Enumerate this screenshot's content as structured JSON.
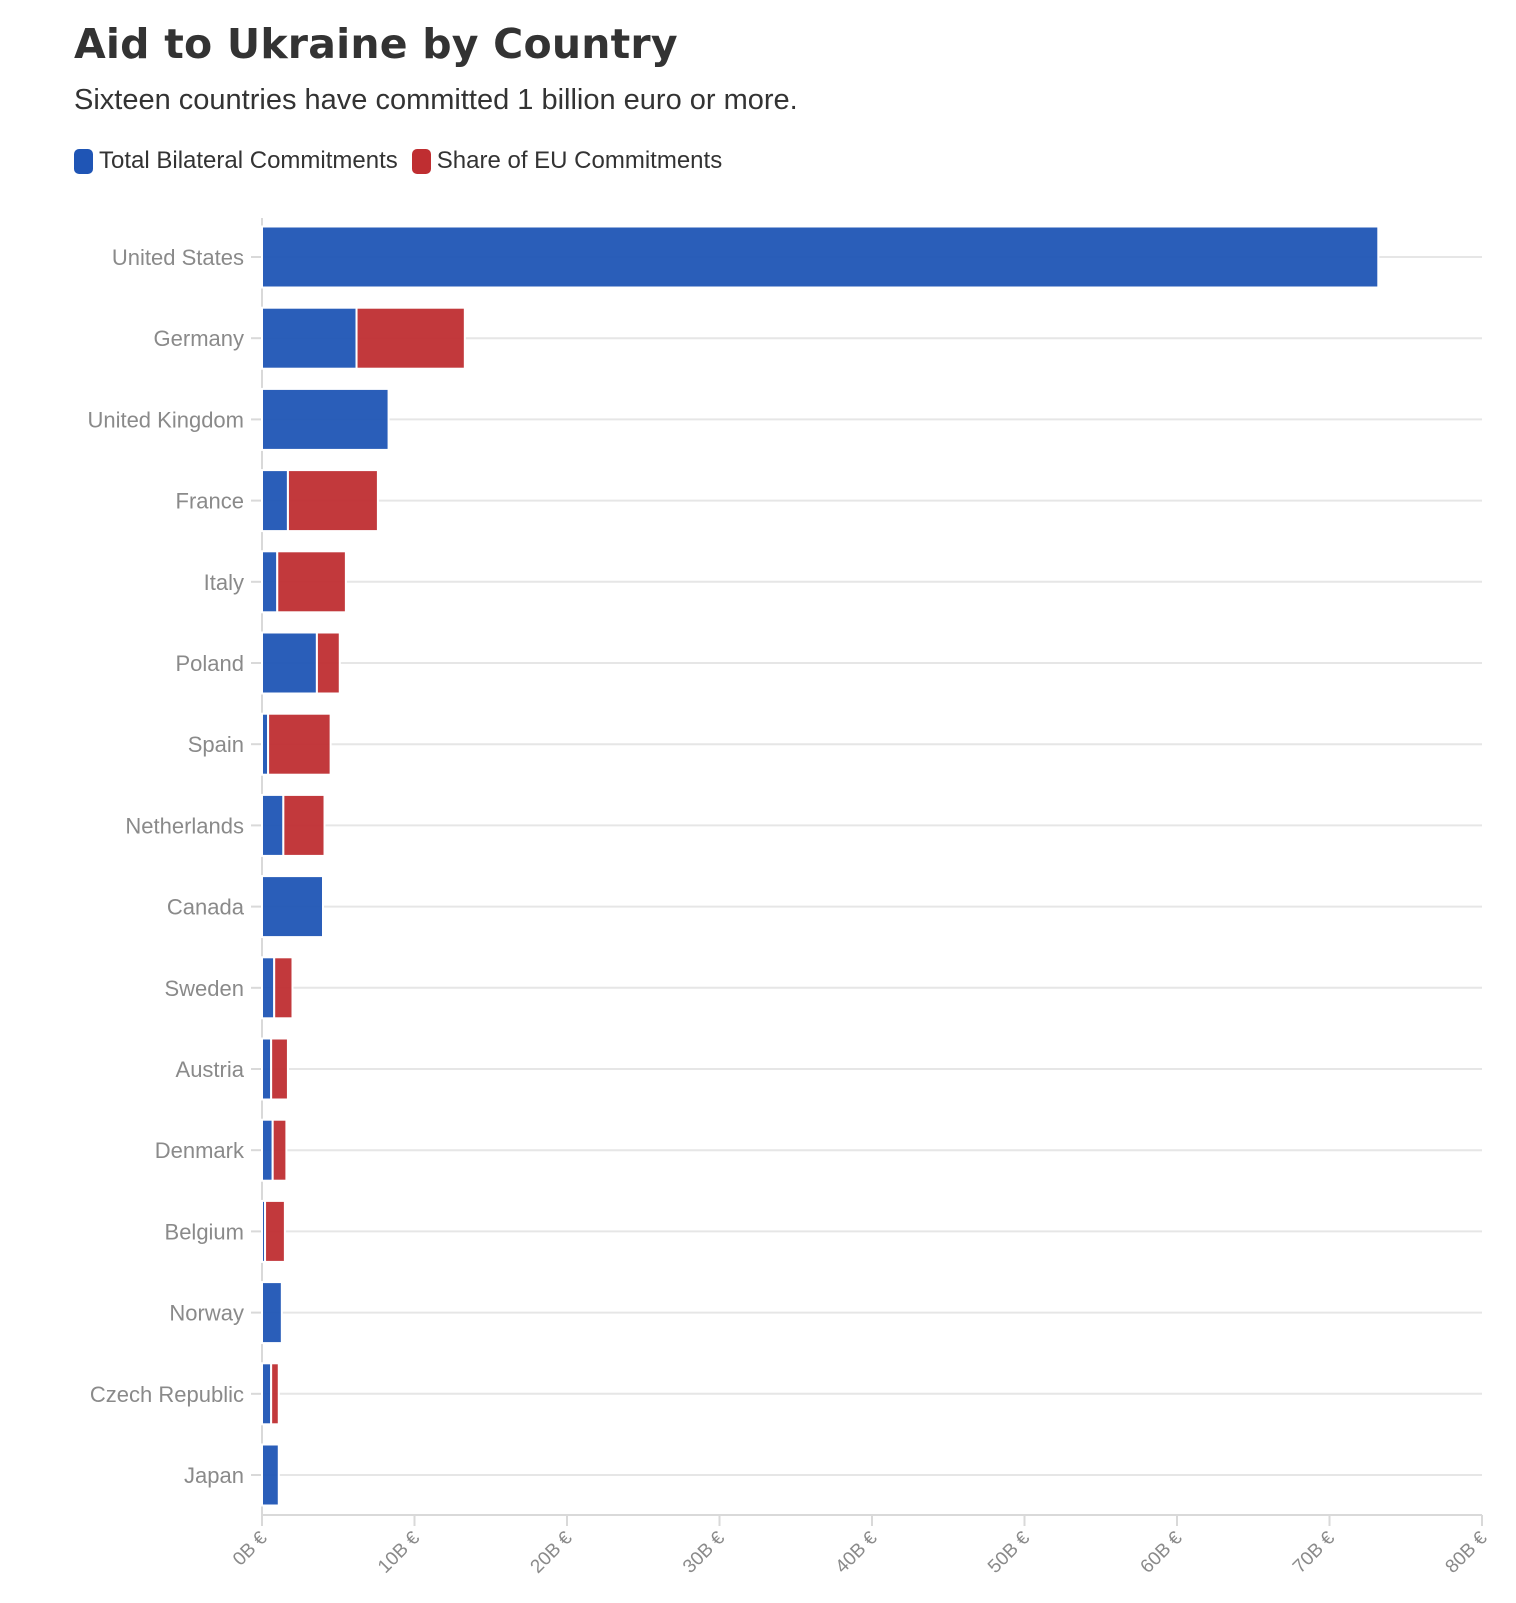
{
  "chart_data": {
    "type": "bar",
    "orientation": "horizontal",
    "stacked": true,
    "title": "Aid to Ukraine by Country",
    "subtitle": "Sixteen countries have committed 1 billion euro or more.",
    "xlabel": "",
    "ylabel": "",
    "xlim": [
      0,
      80
    ],
    "x_ticks": [
      "0B €",
      "10B €",
      "20B €",
      "30B €",
      "40B €",
      "50B €",
      "60B €",
      "70B €",
      "80B €"
    ],
    "grid": true,
    "legend_position": "top-left",
    "categories": [
      "United States",
      "Germany",
      "United Kingdom",
      "France",
      "Italy",
      "Poland",
      "Spain",
      "Netherlands",
      "Canada",
      "Sweden",
      "Austria",
      "Denmark",
      "Belgium",
      "Norway",
      "Czech Republic",
      "Japan"
    ],
    "series": [
      {
        "name": "Total Bilateral Commitments",
        "color": "#1f55b5",
        "values": [
          73.2,
          6.2,
          8.3,
          1.7,
          1.0,
          3.6,
          0.4,
          1.4,
          4.0,
          0.8,
          0.6,
          0.7,
          0.2,
          1.3,
          0.6,
          1.1
        ]
      },
      {
        "name": "Share of EU Commitments",
        "color": "#bf2e31",
        "values": [
          0,
          7.1,
          0,
          5.9,
          4.5,
          1.5,
          4.1,
          2.7,
          0,
          1.2,
          1.1,
          0.9,
          1.3,
          0,
          0.5,
          0
        ]
      }
    ]
  }
}
